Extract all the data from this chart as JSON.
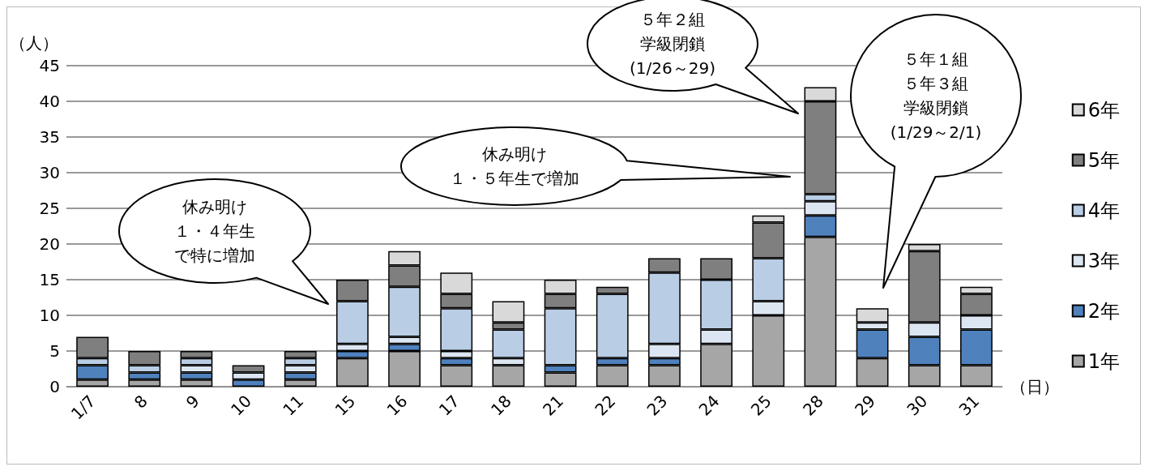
{
  "chart_data": {
    "type": "bar",
    "stacked": true,
    "ylabel": "（人）",
    "xlabel": "（日）",
    "categories": [
      "1/7",
      "8",
      "9",
      "10",
      "11",
      "15",
      "16",
      "17",
      "18",
      "21",
      "22",
      "23",
      "24",
      "25",
      "28",
      "29",
      "30",
      "31"
    ],
    "series": [
      {
        "name": "1年",
        "color": "#a6a6a6",
        "values": [
          1,
          1,
          1,
          0,
          1,
          4,
          5,
          3,
          3,
          2,
          3,
          3,
          6,
          10,
          21,
          4,
          3,
          3
        ]
      },
      {
        "name": "2年",
        "color": "#4f81bd",
        "values": [
          2,
          1,
          1,
          1,
          1,
          1,
          1,
          1,
          0,
          1,
          1,
          1,
          0,
          0,
          3,
          4,
          4,
          5
        ]
      },
      {
        "name": "3年",
        "color": "#dce6f2",
        "values": [
          0,
          0,
          1,
          1,
          1,
          1,
          1,
          1,
          1,
          0,
          0,
          2,
          2,
          2,
          2,
          1,
          2,
          2
        ]
      },
      {
        "name": "4年",
        "color": "#b9cde5",
        "values": [
          1,
          1,
          1,
          0,
          1,
          6,
          7,
          6,
          4,
          8,
          9,
          10,
          7,
          6,
          1,
          0,
          0,
          0
        ]
      },
      {
        "name": "5年",
        "color": "#7f7f7f",
        "values": [
          3,
          2,
          1,
          1,
          1,
          3,
          3,
          2,
          1,
          2,
          1,
          2,
          3,
          5,
          13,
          0,
          10,
          3
        ]
      },
      {
        "name": "6年",
        "color": "#d9d9d9",
        "values": [
          0,
          0,
          0,
          0,
          0,
          0,
          2,
          3,
          3,
          2,
          0,
          0,
          0,
          1,
          2,
          2,
          1,
          1
        ]
      }
    ],
    "ylim": [
      0,
      45
    ],
    "yticks": [
      0,
      5,
      10,
      15,
      20,
      25,
      30,
      35,
      40,
      45
    ],
    "grid": "y",
    "legend": "right",
    "annotations": [
      "休み明け１・４年生で特に増加",
      "休み明け１・５年生で増加",
      "５年２組学級閉鎖(1/26～29)",
      "５年１組５年３組学級閉鎖(1/29～2/1)"
    ]
  }
}
